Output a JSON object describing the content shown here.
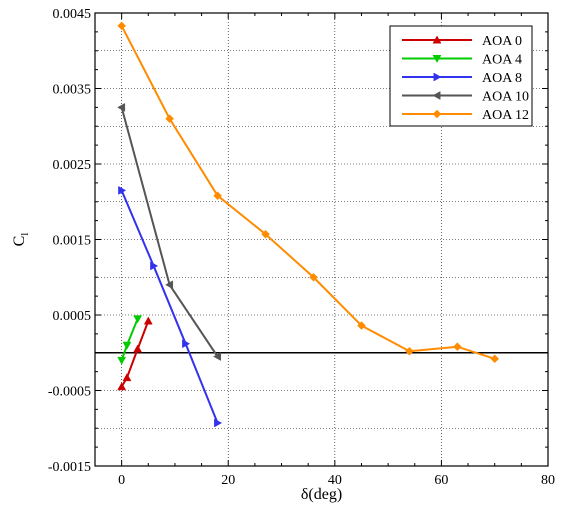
{
  "chart_data": {
    "type": "line",
    "xlabel": "δ(deg)",
    "ylabel": "C",
    "ylabel_subscript": "l",
    "xlim": [
      -5,
      80
    ],
    "ylim": [
      -0.0015,
      0.0045
    ],
    "x_ticks": [
      0,
      20,
      40,
      60,
      80
    ],
    "x_tick_labels": [
      "0",
      "20",
      "40",
      "60",
      "80"
    ],
    "y_ticks": [
      -0.0015,
      -0.0005,
      0.0005,
      0.0015,
      0.0025,
      0.0035,
      0.0045
    ],
    "y_tick_labels": [
      "-0.0015",
      "-0.0005",
      "0.0005",
      "0.0015",
      "0.0025",
      "0.0035",
      "0.0045"
    ],
    "grid": true,
    "reference_line_y": 0,
    "legend_position": "top-right",
    "series": [
      {
        "name": "AOA 0",
        "color": "#cc0000",
        "marker": "triangle-up",
        "x": [
          0,
          1,
          3,
          5
        ],
        "y": [
          -0.00045,
          -0.00033,
          5e-05,
          0.00042
        ]
      },
      {
        "name": "AOA 4",
        "color": "#00cc00",
        "marker": "triangle-down",
        "x": [
          0,
          1,
          3
        ],
        "y": [
          -0.0001,
          0.0001,
          0.00045
        ]
      },
      {
        "name": "AOA 8",
        "color": "#3333ee",
        "marker": "triangle-right",
        "x": [
          0,
          6,
          12,
          18
        ],
        "y": [
          0.00215,
          0.00115,
          0.00012,
          -0.00093
        ]
      },
      {
        "name": "AOA 10",
        "color": "#555555",
        "marker": "triangle-left",
        "x": [
          0,
          9,
          18
        ],
        "y": [
          0.00325,
          0.0009,
          -5e-05
        ]
      },
      {
        "name": "AOA 12",
        "color": "#ff8c00",
        "marker": "diamond",
        "x": [
          0,
          9,
          18,
          27,
          36,
          45,
          54,
          63,
          70
        ],
        "y": [
          0.00433,
          0.0031,
          0.00208,
          0.00157,
          0.001,
          0.00036,
          2e-05,
          8e-05,
          -8e-05
        ]
      }
    ]
  }
}
